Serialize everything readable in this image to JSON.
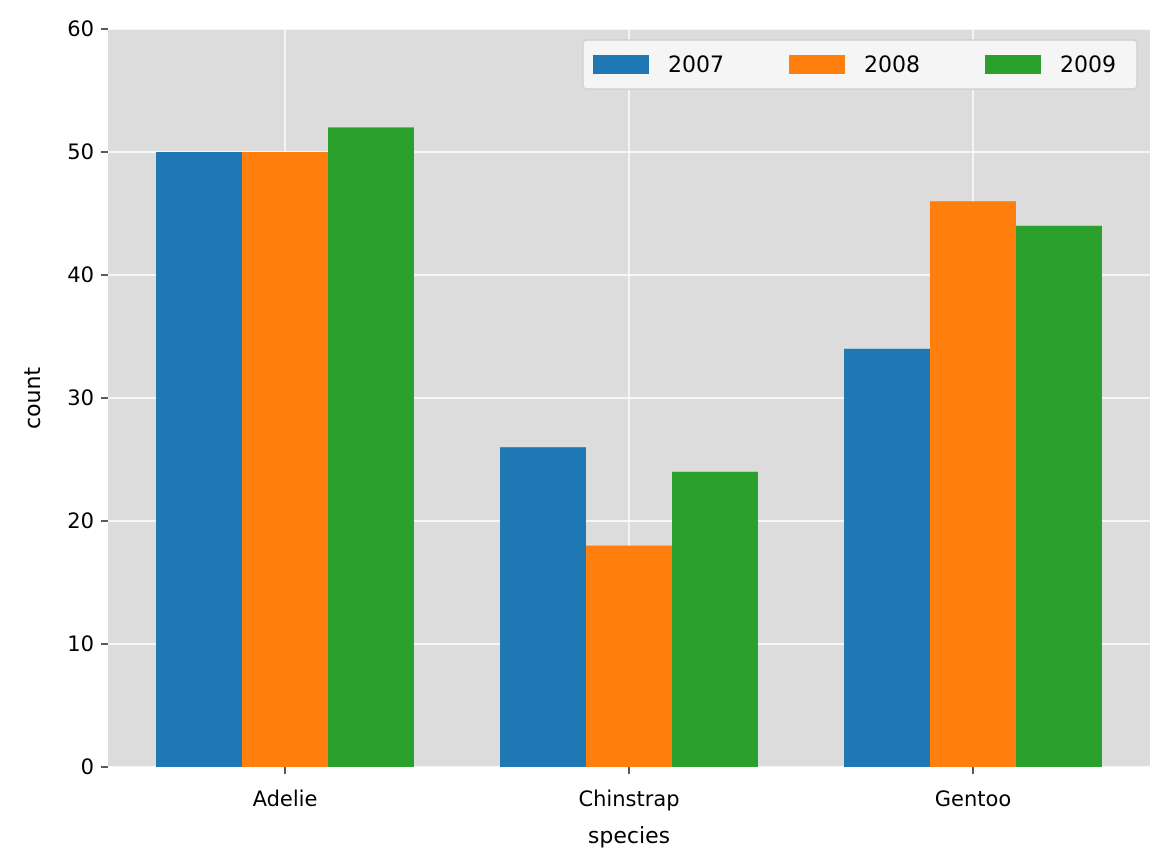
{
  "chart_data": {
    "type": "bar",
    "title": "",
    "xlabel": "species",
    "ylabel": "count",
    "categories": [
      "Adelie",
      "Chinstrap",
      "Gentoo"
    ],
    "series": [
      {
        "name": "2007",
        "color": "#1f77b4",
        "values": [
          50,
          26,
          34
        ]
      },
      {
        "name": "2008",
        "color": "#ff7f0e",
        "values": [
          50,
          18,
          46
        ]
      },
      {
        "name": "2009",
        "color": "#2ca02c",
        "values": [
          52,
          24,
          44
        ]
      }
    ],
    "ylim": [
      0,
      60
    ],
    "yticks": [
      0,
      10,
      20,
      30,
      40,
      50,
      60
    ],
    "grid": true,
    "legend_position": "top-right",
    "background": "#dcdcdc"
  }
}
